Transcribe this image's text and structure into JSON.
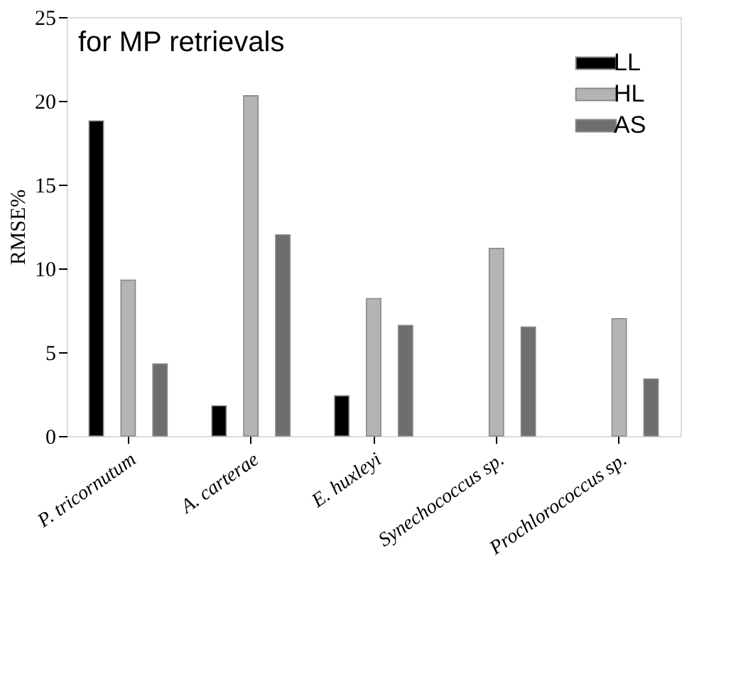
{
  "chart_data": {
    "type": "bar",
    "ylabel": "RMSE%",
    "categories": [
      "P. tricornutum",
      "A. carterae",
      "E. huxleyi",
      "Synechococcus sp.",
      "Prochlorococcus sp."
    ],
    "series": [
      {
        "name": "LL",
        "color": "#000000",
        "values": [
          18.8,
          1.8,
          2.4,
          null,
          null
        ]
      },
      {
        "name": "HL",
        "color": "#b4b4b4",
        "values": [
          9.3,
          20.3,
          8.2,
          11.2,
          7.0
        ]
      },
      {
        "name": "AS",
        "color": "#6e6e6e",
        "values": [
          4.3,
          12.0,
          6.6,
          6.5,
          3.4
        ]
      }
    ],
    "ylim": [
      0,
      25
    ],
    "yticks": [
      0,
      5,
      10,
      15,
      20,
      25
    ],
    "grid": false,
    "legend": "top right",
    "annotations": [
      "for MP retrievals"
    ]
  }
}
